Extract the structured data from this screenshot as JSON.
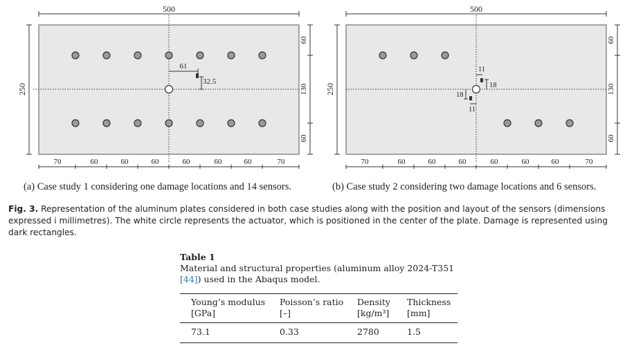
{
  "figure": {
    "panel_a": {
      "width_label": "500",
      "height_label": "250",
      "right_labels": [
        "60",
        "130",
        "60"
      ],
      "bottom_labels": [
        "70",
        "60",
        "60",
        "60",
        "60",
        "60",
        "60",
        "70"
      ],
      "damage_labels": [
        "61",
        "32.5"
      ],
      "caption": "(a) Case study 1 considering one damage locations and 14 sensors."
    },
    "panel_b": {
      "width_label": "500",
      "height_label": "250",
      "right_labels": [
        "60",
        "130",
        "60"
      ],
      "bottom_labels": [
        "70",
        "60",
        "60",
        "60",
        "60",
        "60",
        "60",
        "70"
      ],
      "damage_labels": [
        "11",
        "18",
        "18",
        "11"
      ],
      "caption": "(b) Case study 2 considering two damage locations and 6 sensors."
    },
    "caption_label": "Fig. 3.",
    "caption_text": "Representation of the aluminum plates considered in both case studies along with the position and layout of the sensors (dimensions expressed i millimetres). The white circle represents the actuator, which is positioned in the center of the plate. Damage is represented using dark rectangles."
  },
  "table": {
    "title": "Table 1",
    "description": "Material and structural properties (aluminum alloy 2024-T351 ",
    "description_ref": "[44]",
    "description_end": ") used in the Abaqus model.",
    "headers": [
      {
        "name": "Young’s modulus",
        "unit": "[GPa]"
      },
      {
        "name": "Poisson’s ratio",
        "unit": "[–]"
      },
      {
        "name": "Density",
        "unit": "[kg/m³]"
      },
      {
        "name": "Thickness",
        "unit": "[mm]"
      }
    ],
    "rows": [
      [
        "73.1",
        "0.33",
        "2780",
        "1.5"
      ]
    ]
  }
}
